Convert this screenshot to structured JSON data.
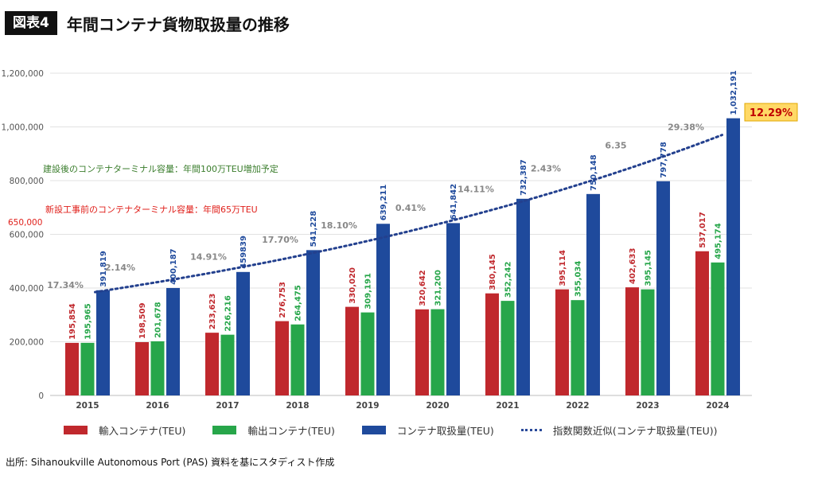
{
  "header": {
    "badge": "図表4",
    "title": "年間コンテナ貨物取扱量の推移"
  },
  "source_note": "出所: Sihanoukville Autonomous Port (PAS) 資料を基にスタディスト作成",
  "colors": {
    "import": "#c0282d",
    "export": "#27a64a",
    "total": "#1f4a9c",
    "trend": "#23408e",
    "callout_bg": "#ffd966",
    "callout_text": "#c00000",
    "note_green": "#3a7d2c",
    "note_red": "#e0201b",
    "growth_label": "#888888"
  },
  "chart_data": {
    "type": "bar",
    "title": "年間コンテナ貨物取扱量の推移",
    "categories": [
      "2015",
      "2016",
      "2017",
      "2018",
      "2019",
      "2020",
      "2021",
      "2022",
      "2023",
      "2024"
    ],
    "series": [
      {
        "name": "輸入コンテナ(TEU)",
        "values": [
          195854,
          198509,
          233623,
          276753,
          330020,
          320642,
          380145,
          395114,
          402633,
          537017
        ],
        "labels": [
          "195,854",
          "198,509",
          "233,623",
          "276,753",
          "330,020",
          "320,642",
          "380,145",
          "395,114",
          "402,633",
          "537,017"
        ]
      },
      {
        "name": "輸出コンテナ(TEU)",
        "values": [
          195965,
          201678,
          226216,
          264475,
          309191,
          321200,
          352242,
          355034,
          395145,
          495174
        ],
        "labels": [
          "195,965",
          "201,678",
          "226,216",
          "264,475",
          "309,191",
          "321,200",
          "352,242",
          "355,034",
          "395,145",
          "495,174"
        ]
      },
      {
        "name": "コンテナ取扱量(TEU)",
        "values": [
          391819,
          400187,
          459839,
          541228,
          639211,
          641842,
          732387,
          750148,
          797778,
          1032191
        ],
        "labels": [
          "391,819",
          "400,187",
          "459839",
          "541,228",
          "639,211",
          "641,842",
          "732,387",
          "750,148",
          "797,778",
          "1,032,191"
        ]
      }
    ],
    "trend": {
      "name": "指数関数近似(コンテナ取扱量(TEU))",
      "start_value": 385000,
      "end_value": 970000
    },
    "growth_labels": [
      "17.34%",
      "2.14%",
      "14.91%",
      "17.70%",
      "18.10%",
      "0.41%",
      "14.11%",
      "2.43%",
      "6.35",
      "29.38%"
    ],
    "callout": "12.29%",
    "annotations": {
      "capacity_future": "建設後のコンテナターミナル容量：年間100万TEU増加予定",
      "capacity_current": "新設工事前のコンテナターミナル容量：年間65万TEU",
      "capacity_value": "650,000"
    },
    "ylim": [
      0,
      1200000
    ],
    "yticks": [
      0,
      200000,
      400000,
      600000,
      800000,
      1000000,
      1200000
    ],
    "ytick_labels": [
      "0",
      "200,000",
      "400,000",
      "600,000",
      "800,000",
      "1,000,000",
      "1,200,000"
    ],
    "grid": true,
    "legend": "bottom"
  }
}
